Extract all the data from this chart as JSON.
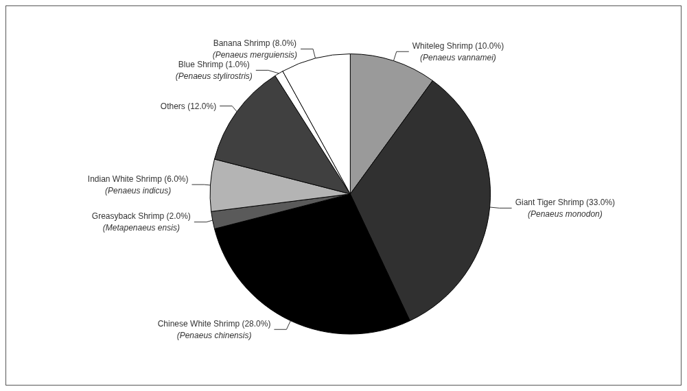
{
  "chart_data": {
    "type": "pie",
    "categories": [
      "Whiteleg Shrimp (10.0%)\n(Penaeus vannamei)",
      "Giant Tiger Shrimp (33.0%)\n(Penaeus monodon)",
      "Chinese White Shrimp (28.0%)\n(Penaeus chinensis)",
      "Greasyback Shrimp (2.0%)\n(Metapenaeus ensis)",
      "Indian White Shrimp (6.0%)\n(Penaeus indicus)",
      "Others (12.0%)",
      "Blue Shrimp (1.0%)\n(Penaeus stylirostris)",
      "Banana Shrimp (8.0%)\n(Penaeus merguiensis)"
    ],
    "values": [
      10,
      33,
      28,
      2,
      6,
      12,
      1,
      8
    ],
    "colors": [
      "#9a9a9a",
      "#303030",
      "#000000",
      "#5a5a5a",
      "#b4b4b4",
      "#404040",
      "#ffffff",
      "#ffffff"
    ]
  }
}
